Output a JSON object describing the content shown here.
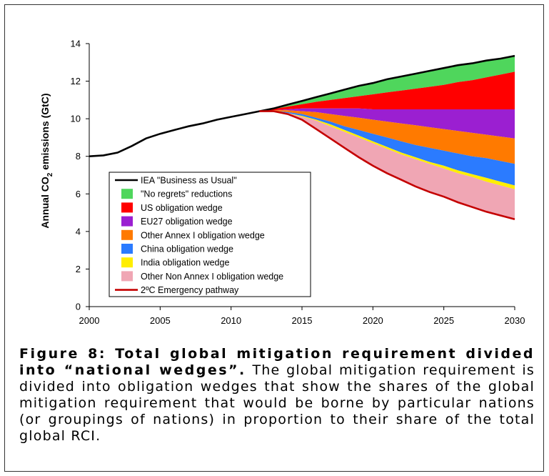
{
  "chart_data": {
    "type": "area",
    "ylabel": "Annual CO₂ emissions (GtC)",
    "ylabel_main": "Annual CO",
    "ylabel_sub": "2",
    "ylabel_rest": " emissions (GtC)",
    "xlabel": "",
    "xlim": [
      2000,
      2030
    ],
    "ylim": [
      0,
      14
    ],
    "x_ticks": [
      2000,
      2005,
      2010,
      2015,
      2020,
      2025,
      2030
    ],
    "y_ticks": [
      0,
      2,
      4,
      6,
      8,
      10,
      12,
      14
    ],
    "grid": false,
    "legend_position": "lower-left",
    "x": [
      2000,
      2001,
      2002,
      2003,
      2004,
      2005,
      2006,
      2007,
      2008,
      2009,
      2010,
      2011,
      2012,
      2013,
      2014,
      2015,
      2016,
      2017,
      2018,
      2019,
      2020,
      2021,
      2022,
      2023,
      2024,
      2025,
      2026,
      2027,
      2028,
      2029,
      2030
    ],
    "bau": [
      8.0,
      8.05,
      8.2,
      8.55,
      8.95,
      9.2,
      9.4,
      9.6,
      9.75,
      9.95,
      10.1,
      10.25,
      10.4,
      10.55,
      10.75,
      10.95,
      11.15,
      11.35,
      11.55,
      11.75,
      11.9,
      12.1,
      12.25,
      12.4,
      12.55,
      12.7,
      12.85,
      12.95,
      13.1,
      13.2,
      13.35
    ],
    "boundaries_after_2012": {
      "x": [
        2012,
        2013,
        2014,
        2015,
        2016,
        2017,
        2018,
        2019,
        2020,
        2021,
        2022,
        2023,
        2024,
        2025,
        2026,
        2027,
        2028,
        2029,
        2030
      ],
      "no_regrets_bottom": [
        10.4,
        10.52,
        10.65,
        10.77,
        10.9,
        11.0,
        11.1,
        11.2,
        11.3,
        11.4,
        11.5,
        11.6,
        11.7,
        11.8,
        11.95,
        12.05,
        12.2,
        12.35,
        12.5
      ],
      "us_bottom": [
        10.4,
        10.45,
        10.5,
        10.55,
        10.55,
        10.55,
        10.55,
        10.55,
        10.5,
        10.5,
        10.5,
        10.5,
        10.5,
        10.5,
        10.5,
        10.5,
        10.5,
        10.5,
        10.5
      ],
      "eu27_bottom": [
        10.4,
        10.45,
        10.45,
        10.4,
        10.35,
        10.25,
        10.15,
        10.05,
        9.95,
        9.85,
        9.75,
        9.65,
        9.55,
        9.45,
        9.35,
        9.25,
        9.15,
        9.05,
        8.95
      ],
      "other_annex1_bottom": [
        10.4,
        10.42,
        10.35,
        10.25,
        10.05,
        9.85,
        9.6,
        9.4,
        9.2,
        9.0,
        8.8,
        8.6,
        8.45,
        8.3,
        8.15,
        8.0,
        7.9,
        7.75,
        7.6
      ],
      "china_bottom": [
        10.4,
        10.4,
        10.3,
        10.15,
        9.95,
        9.7,
        9.4,
        9.1,
        8.8,
        8.5,
        8.2,
        7.95,
        7.7,
        7.5,
        7.25,
        7.05,
        6.85,
        6.65,
        6.45
      ],
      "india_bottom": [
        10.4,
        10.4,
        10.3,
        10.1,
        9.9,
        9.6,
        9.3,
        9.0,
        8.7,
        8.4,
        8.1,
        7.85,
        7.6,
        7.35,
        7.1,
        6.9,
        6.65,
        6.45,
        6.25
      ],
      "emergency": [
        10.4,
        10.4,
        10.25,
        9.95,
        9.45,
        8.95,
        8.45,
        7.95,
        7.5,
        7.1,
        6.75,
        6.4,
        6.1,
        5.85,
        5.55,
        5.3,
        5.05,
        4.85,
        4.65
      ]
    },
    "series": [
      {
        "name": "IEA \"Business as Usual\"",
        "kind": "line",
        "color": "#000000"
      },
      {
        "name": "\"No regrets\" reductions",
        "kind": "area",
        "color": "#4fd65c"
      },
      {
        "name": "US obligation wedge",
        "kind": "area",
        "color": "#ff0000"
      },
      {
        "name": "EU27 obligation wedge",
        "kind": "area",
        "color": "#9b1fd1"
      },
      {
        "name": "Other Annex I obligation wedge",
        "kind": "area",
        "color": "#ff7a00"
      },
      {
        "name": "China obligation wedge",
        "kind": "area",
        "color": "#2b7bff"
      },
      {
        "name": "India obligation wedge",
        "kind": "area",
        "color": "#ffee00"
      },
      {
        "name": "Other Non Annex I obligation wedge",
        "kind": "area",
        "color": "#f0a6b4"
      },
      {
        "name": "2ºC Emergency pathway",
        "kind": "line",
        "color": "#c40000"
      }
    ]
  },
  "caption": {
    "bold": "Figure 8: Total global mitigation requirement divided into “national wedges”.",
    "text": " The global mitigation requirement is divided into obligation wedges that show the shares of the global mitigation requirement that would be borne by particular nations (or groupings of nations) in proportion to their share of the total global RCI."
  }
}
